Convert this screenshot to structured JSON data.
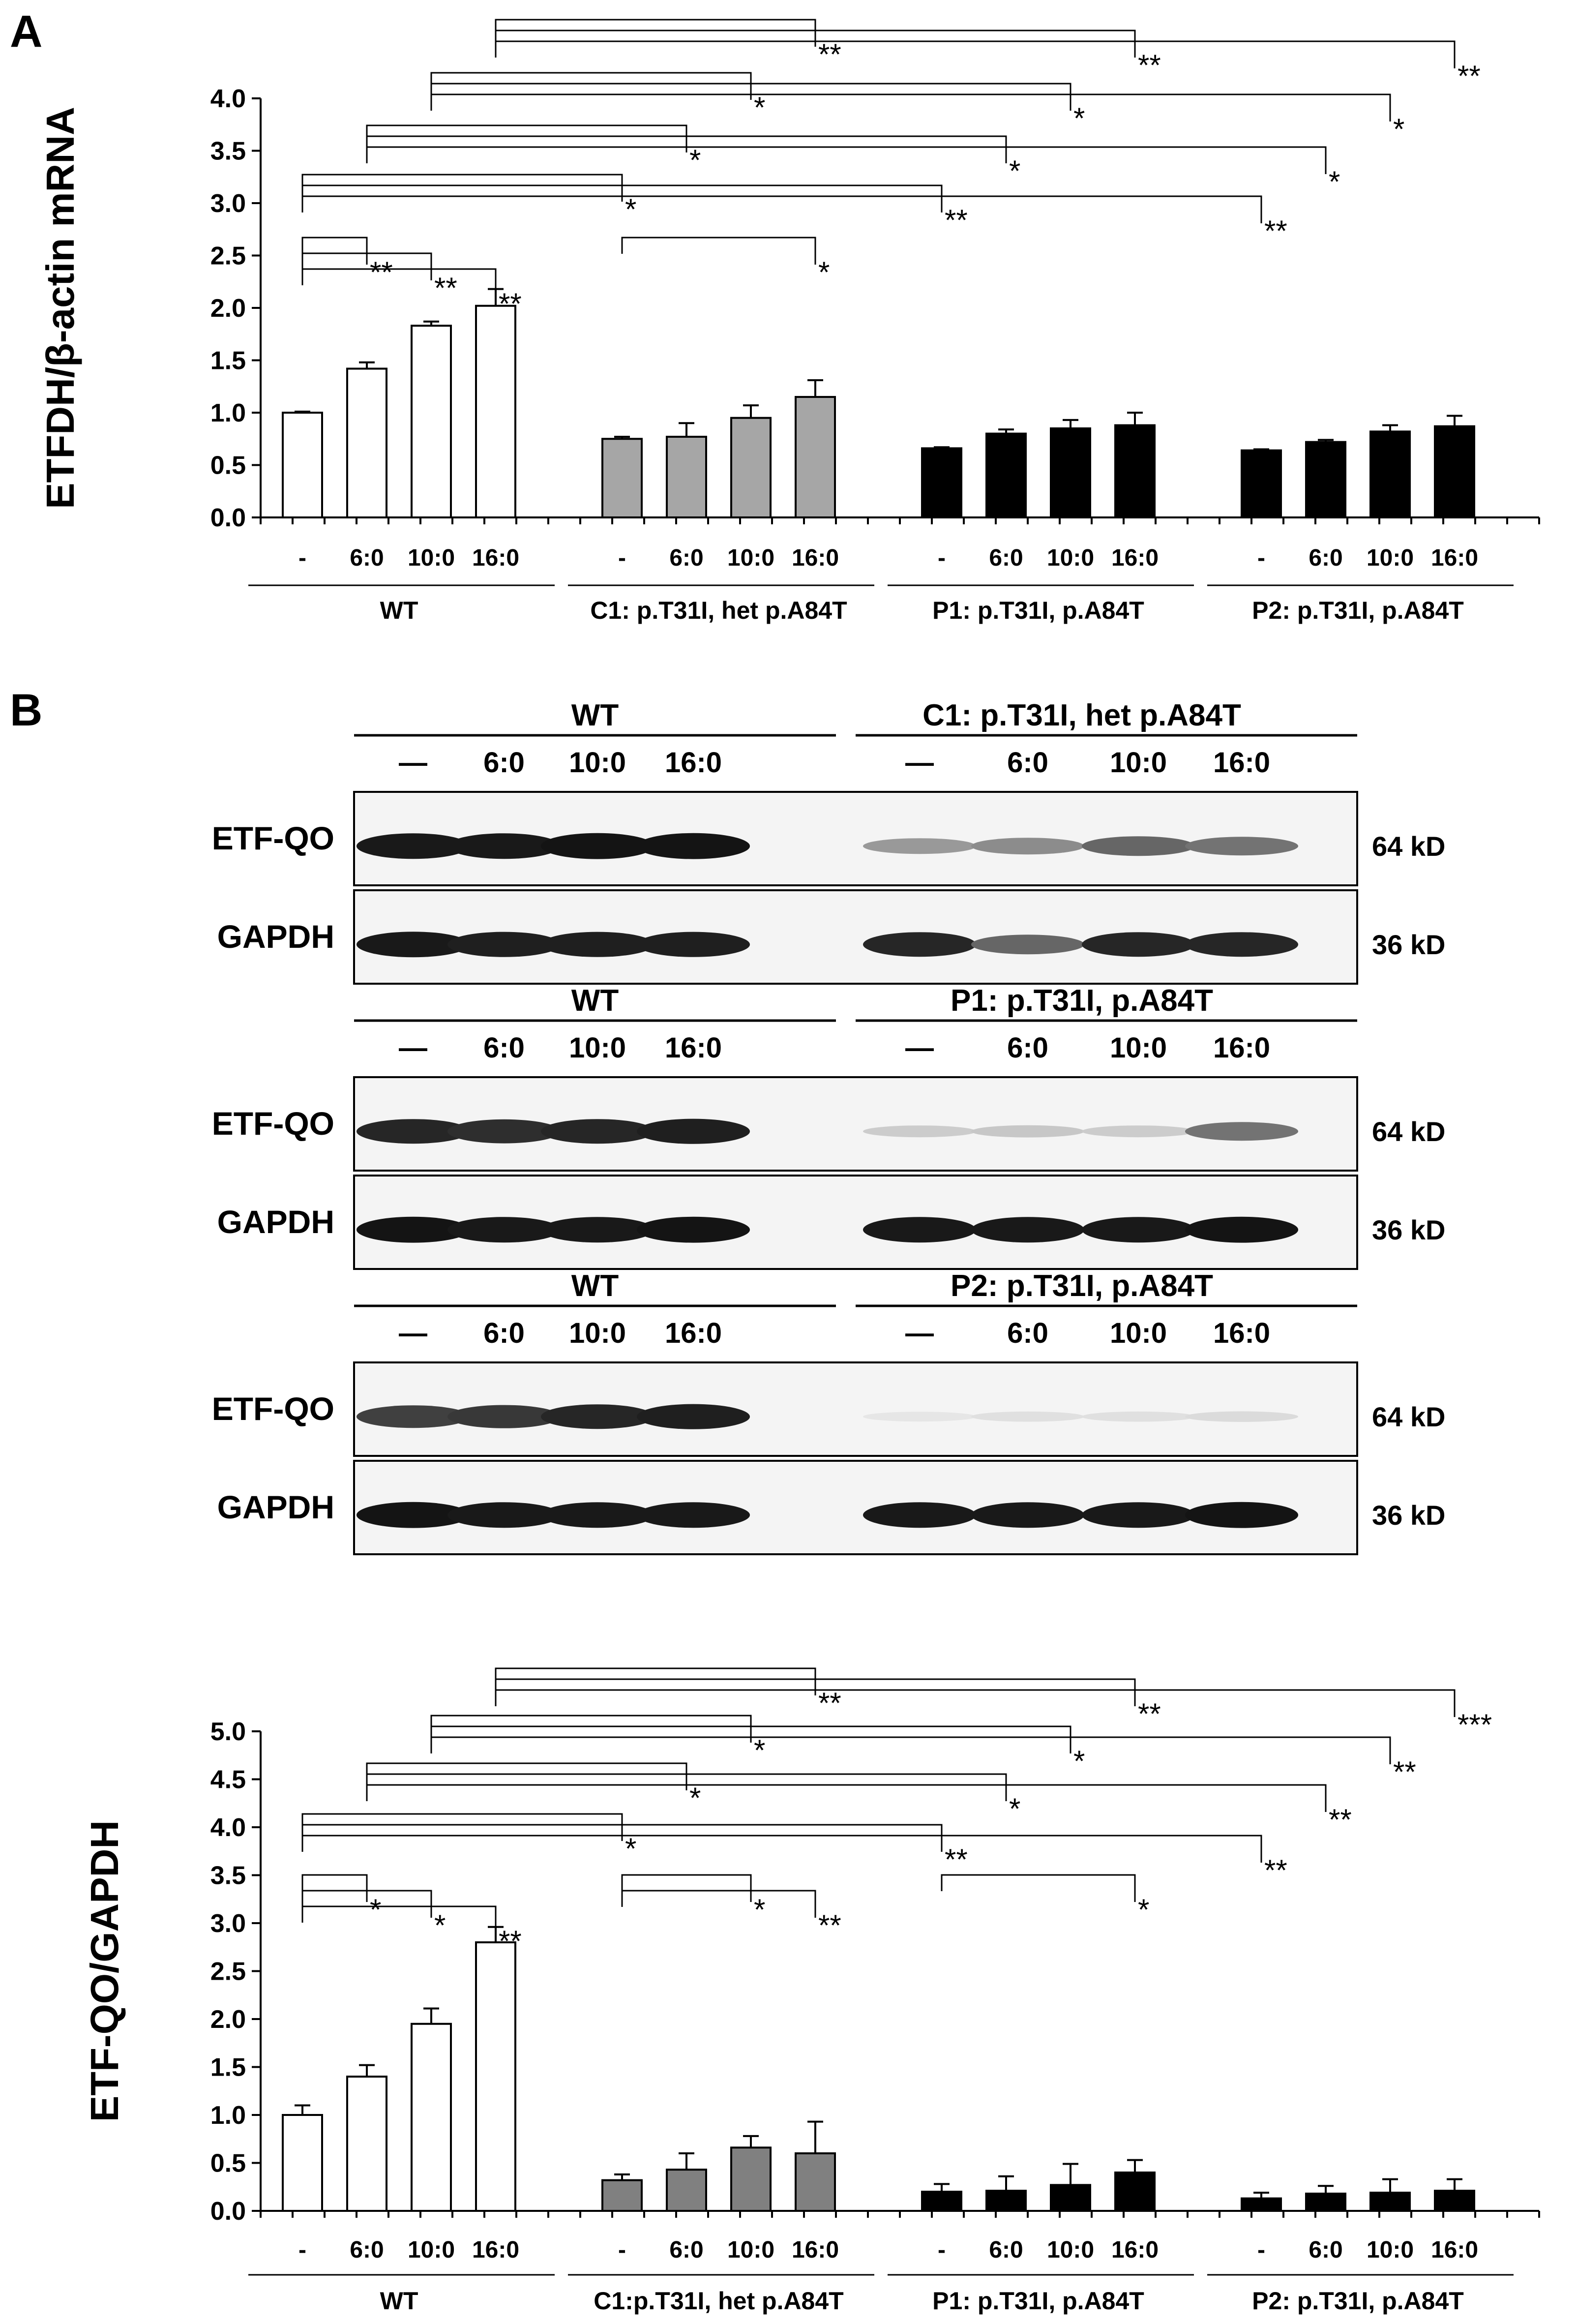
{
  "panel_a_label": "A",
  "panel_b_label": "B",
  "chart_data": [
    {
      "type": "bar",
      "ylabel": "ETFDH/β-actin mRNA",
      "ylim": [
        0,
        4.0
      ],
      "yticks": [
        "0.0",
        "0.5",
        "1.0",
        "1.5",
        "2.0",
        "2.5",
        "3.0",
        "3.5",
        "4.0"
      ],
      "conditions": [
        "-",
        "6:0",
        "10:0",
        "16:0"
      ],
      "groups": [
        {
          "name": "WT",
          "color": "#ffffff",
          "values": [
            1.0,
            1.42,
            1.83,
            2.02
          ],
          "errors": [
            0.01,
            0.06,
            0.04,
            0.16
          ]
        },
        {
          "name": "C1: p.T31I, het p.A84T",
          "color": "#a6a6a6",
          "values": [
            0.75,
            0.77,
            0.95,
            1.15
          ],
          "errors": [
            0.02,
            0.13,
            0.12,
            0.16
          ]
        },
        {
          "name": "P1: p.T31I, p.A84T",
          "color": "#000000",
          "values": [
            0.66,
            0.8,
            0.85,
            0.88
          ],
          "errors": [
            0.01,
            0.04,
            0.08,
            0.12
          ]
        },
        {
          "name": "P2: p.T31I, p.A84T",
          "color": "#000000",
          "values": [
            0.64,
            0.72,
            0.82,
            0.87
          ],
          "errors": [
            0.01,
            0.02,
            0.06,
            0.1
          ]
        }
      ],
      "significance": [
        {
          "from": [
            0,
            0
          ],
          "to": [
            0,
            1
          ],
          "label": "**"
        },
        {
          "from": [
            0,
            0
          ],
          "to": [
            0,
            2
          ],
          "label": "**"
        },
        {
          "from": [
            0,
            0
          ],
          "to": [
            0,
            3
          ],
          "label": "**"
        },
        {
          "from": [
            1,
            0
          ],
          "to": [
            1,
            3
          ],
          "label": "*"
        },
        {
          "from": [
            0,
            0
          ],
          "to": [
            1,
            0
          ],
          "label": "*"
        },
        {
          "from": [
            0,
            0
          ],
          "to": [
            2,
            0
          ],
          "label": "**"
        },
        {
          "from": [
            0,
            0
          ],
          "to": [
            3,
            0
          ],
          "label": "**"
        },
        {
          "from": [
            0,
            1
          ],
          "to": [
            1,
            1
          ],
          "label": "*"
        },
        {
          "from": [
            0,
            1
          ],
          "to": [
            2,
            1
          ],
          "label": "*"
        },
        {
          "from": [
            0,
            1
          ],
          "to": [
            3,
            1
          ],
          "label": "*"
        },
        {
          "from": [
            0,
            2
          ],
          "to": [
            1,
            2
          ],
          "label": "*"
        },
        {
          "from": [
            0,
            2
          ],
          "to": [
            2,
            2
          ],
          "label": "*"
        },
        {
          "from": [
            0,
            2
          ],
          "to": [
            3,
            2
          ],
          "label": "*"
        },
        {
          "from": [
            0,
            3
          ],
          "to": [
            1,
            3
          ],
          "label": "**"
        },
        {
          "from": [
            0,
            3
          ],
          "to": [
            2,
            3
          ],
          "label": "**"
        },
        {
          "from": [
            0,
            3
          ],
          "to": [
            3,
            3
          ],
          "label": "**"
        }
      ]
    },
    {
      "type": "bar",
      "ylabel": "ETF-QO/GAPDH",
      "ylim": [
        0,
        5.0
      ],
      "yticks": [
        "0.0",
        "0.5",
        "1.0",
        "1.5",
        "2.0",
        "2.5",
        "3.0",
        "3.5",
        "4.0",
        "4.5",
        "5.0"
      ],
      "conditions": [
        "-",
        "6:0",
        "10:0",
        "16:0"
      ],
      "groups": [
        {
          "name": "WT",
          "color": "#ffffff",
          "values": [
            1.0,
            1.4,
            1.95,
            2.8
          ],
          "errors": [
            0.1,
            0.12,
            0.16,
            0.16
          ]
        },
        {
          "name": "C1:p.T31I, het p.A84T",
          "color": "#808080",
          "values": [
            0.32,
            0.43,
            0.66,
            0.6
          ],
          "errors": [
            0.06,
            0.17,
            0.12,
            0.33
          ]
        },
        {
          "name": "P1: p.T31I, p.A84T",
          "color": "#000000",
          "values": [
            0.2,
            0.21,
            0.27,
            0.4
          ],
          "errors": [
            0.08,
            0.15,
            0.22,
            0.13
          ]
        },
        {
          "name": "P2: p.T31I, p.A84T",
          "color": "#000000",
          "values": [
            0.13,
            0.18,
            0.19,
            0.21
          ],
          "errors": [
            0.06,
            0.08,
            0.14,
            0.12
          ]
        }
      ],
      "significance": [
        {
          "from": [
            0,
            0
          ],
          "to": [
            0,
            1
          ],
          "label": "*"
        },
        {
          "from": [
            0,
            0
          ],
          "to": [
            0,
            2
          ],
          "label": "*"
        },
        {
          "from": [
            0,
            0
          ],
          "to": [
            0,
            3
          ],
          "label": "**"
        },
        {
          "from": [
            1,
            0
          ],
          "to": [
            1,
            2
          ],
          "label": "*"
        },
        {
          "from": [
            1,
            0
          ],
          "to": [
            1,
            3
          ],
          "label": "**"
        },
        {
          "from": [
            2,
            0
          ],
          "to": [
            2,
            3
          ],
          "label": "*"
        },
        {
          "from": [
            0,
            0
          ],
          "to": [
            1,
            0
          ],
          "label": "*"
        },
        {
          "from": [
            0,
            0
          ],
          "to": [
            2,
            0
          ],
          "label": "**"
        },
        {
          "from": [
            0,
            0
          ],
          "to": [
            3,
            0
          ],
          "label": "**"
        },
        {
          "from": [
            0,
            1
          ],
          "to": [
            1,
            1
          ],
          "label": "*"
        },
        {
          "from": [
            0,
            1
          ],
          "to": [
            2,
            1
          ],
          "label": "*"
        },
        {
          "from": [
            0,
            1
          ],
          "to": [
            3,
            1
          ],
          "label": "**"
        },
        {
          "from": [
            0,
            2
          ],
          "to": [
            1,
            2
          ],
          "label": "*"
        },
        {
          "from": [
            0,
            2
          ],
          "to": [
            2,
            2
          ],
          "label": "*"
        },
        {
          "from": [
            0,
            2
          ],
          "to": [
            3,
            2
          ],
          "label": "**"
        },
        {
          "from": [
            0,
            3
          ],
          "to": [
            1,
            3
          ],
          "label": "**"
        },
        {
          "from": [
            0,
            3
          ],
          "to": [
            2,
            3
          ],
          "label": "**"
        },
        {
          "from": [
            0,
            3
          ],
          "to": [
            3,
            3
          ],
          "label": "***"
        }
      ]
    }
  ],
  "blots": [
    {
      "left_group": "WT",
      "right_group": "C1: p.T31I, het p.A84T",
      "lanes": [
        "—",
        "6:0",
        "10:0",
        "16:0",
        "—",
        "6:0",
        "10:0",
        "16:0"
      ],
      "rows": [
        {
          "label": "ETF-QO",
          "size": "64 kD",
          "intensities": [
            0.9,
            0.9,
            0.92,
            0.92,
            0.4,
            0.45,
            0.6,
            0.55
          ]
        },
        {
          "label": "GAPDH",
          "size": "36 kD",
          "intensities": [
            0.9,
            0.88,
            0.88,
            0.88,
            0.85,
            0.6,
            0.85,
            0.85
          ]
        }
      ]
    },
    {
      "left_group": "WT",
      "right_group": "P1: p.T31I,  p.A84T",
      "lanes": [
        "—",
        "6:0",
        "10:0",
        "16:0",
        "—",
        "6:0",
        "10:0",
        "16:0"
      ],
      "rows": [
        {
          "label": "ETF-QO",
          "size": "64 kD",
          "intensities": [
            0.85,
            0.82,
            0.85,
            0.88,
            0.2,
            0.22,
            0.2,
            0.55
          ]
        },
        {
          "label": "GAPDH",
          "size": "36 kD",
          "intensities": [
            0.92,
            0.9,
            0.9,
            0.92,
            0.9,
            0.9,
            0.9,
            0.92
          ]
        }
      ]
    },
    {
      "left_group": "WT",
      "right_group": "P2: p.T31I, p.A84T",
      "lanes": [
        "—",
        "6:0",
        "10:0",
        "16:0",
        "—",
        "6:0",
        "10:0",
        "16:0"
      ],
      "rows": [
        {
          "label": "ETF-QO",
          "size": "64 kD",
          "intensities": [
            0.75,
            0.78,
            0.85,
            0.88,
            0.1,
            0.12,
            0.12,
            0.14
          ]
        },
        {
          "label": "GAPDH",
          "size": "36 kD",
          "intensities": [
            0.92,
            0.9,
            0.9,
            0.9,
            0.9,
            0.9,
            0.9,
            0.92
          ]
        }
      ]
    }
  ]
}
